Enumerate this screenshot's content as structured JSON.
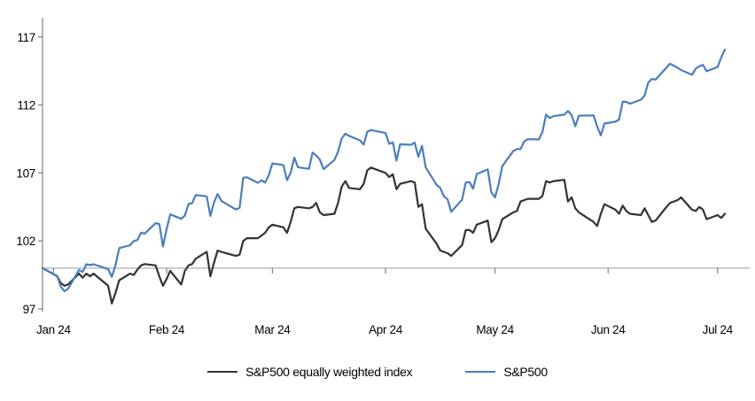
{
  "chart_data": {
    "type": "line",
    "title": "",
    "baseline_value": 100,
    "grid": "single horizontal gridline at y=100",
    "legend_position": "bottom-center",
    "colors": {
      "grid": "#a6a6a6",
      "axis": "#808080",
      "background": "#ffffff"
    },
    "y_axis": {
      "ticks": [
        97,
        102,
        107,
        112,
        117
      ],
      "range": [
        97,
        118.5
      ]
    },
    "x_axis": {
      "ticks": [
        {
          "date": "2024-01-01",
          "label": "Jan 24"
        },
        {
          "date": "2024-02-01",
          "label": "Feb 24"
        },
        {
          "date": "2024-03-01",
          "label": "Mar 24"
        },
        {
          "date": "2024-04-01",
          "label": "Apr 24"
        },
        {
          "date": "2024-05-01",
          "label": "May 24"
        },
        {
          "date": "2024-06-01",
          "label": "Jun 24"
        },
        {
          "date": "2024-07-01",
          "label": "Jul 24"
        }
      ]
    },
    "dates": [
      "2023-12-29",
      "2024-01-02",
      "2024-01-03",
      "2024-01-04",
      "2024-01-05",
      "2024-01-08",
      "2024-01-09",
      "2024-01-10",
      "2024-01-11",
      "2024-01-12",
      "2024-01-16",
      "2024-01-17",
      "2024-01-18",
      "2024-01-19",
      "2024-01-22",
      "2024-01-23",
      "2024-01-24",
      "2024-01-25",
      "2024-01-26",
      "2024-01-29",
      "2024-01-30",
      "2024-01-31",
      "2024-02-01",
      "2024-02-02",
      "2024-02-05",
      "2024-02-06",
      "2024-02-07",
      "2024-02-08",
      "2024-02-09",
      "2024-02-12",
      "2024-02-13",
      "2024-02-14",
      "2024-02-15",
      "2024-02-16",
      "2024-02-20",
      "2024-02-21",
      "2024-02-22",
      "2024-02-23",
      "2024-02-26",
      "2024-02-27",
      "2024-02-28",
      "2024-02-29",
      "2024-03-01",
      "2024-03-04",
      "2024-03-05",
      "2024-03-06",
      "2024-03-07",
      "2024-03-08",
      "2024-03-11",
      "2024-03-12",
      "2024-03-13",
      "2024-03-14",
      "2024-03-15",
      "2024-03-18",
      "2024-03-19",
      "2024-03-20",
      "2024-03-21",
      "2024-03-22",
      "2024-03-25",
      "2024-03-26",
      "2024-03-27",
      "2024-03-28",
      "2024-04-01",
      "2024-04-02",
      "2024-04-03",
      "2024-04-04",
      "2024-04-05",
      "2024-04-08",
      "2024-04-09",
      "2024-04-10",
      "2024-04-11",
      "2024-04-12",
      "2024-04-15",
      "2024-04-16",
      "2024-04-17",
      "2024-04-18",
      "2024-04-19",
      "2024-04-22",
      "2024-04-23",
      "2024-04-24",
      "2024-04-25",
      "2024-04-26",
      "2024-04-29",
      "2024-04-30",
      "2024-05-01",
      "2024-05-02",
      "2024-05-03",
      "2024-05-06",
      "2024-05-07",
      "2024-05-08",
      "2024-05-09",
      "2024-05-10",
      "2024-05-13",
      "2024-05-14",
      "2024-05-15",
      "2024-05-16",
      "2024-05-17",
      "2024-05-20",
      "2024-05-21",
      "2024-05-22",
      "2024-05-23",
      "2024-05-24",
      "2024-05-28",
      "2024-05-29",
      "2024-05-30",
      "2024-05-31",
      "2024-06-03",
      "2024-06-04",
      "2024-06-05",
      "2024-06-06",
      "2024-06-07",
      "2024-06-10",
      "2024-06-11",
      "2024-06-12",
      "2024-06-13",
      "2024-06-14",
      "2024-06-17",
      "2024-06-18",
      "2024-06-20",
      "2024-06-21",
      "2024-06-24",
      "2024-06-25",
      "2024-06-26",
      "2024-06-27",
      "2024-06-28",
      "2024-07-01",
      "2024-07-02",
      "2024-07-03"
    ],
    "series": [
      {
        "name": "S&P500 equally weighted index",
        "color": "#333333",
        "values": [
          100.0,
          99.4,
          98.9,
          98.7,
          98.8,
          99.6,
          99.3,
          99.6,
          99.4,
          99.6,
          98.7,
          97.4,
          98.2,
          99.1,
          99.6,
          99.5,
          99.9,
          100.2,
          100.3,
          100.2,
          99.4,
          98.7,
          99.2,
          99.8,
          98.8,
          99.8,
          100.2,
          100.3,
          100.7,
          101.2,
          99.4,
          100.4,
          101.3,
          101.2,
          100.9,
          101.0,
          102.0,
          102.2,
          102.2,
          102.4,
          102.6,
          103.0,
          103.2,
          103.0,
          102.6,
          103.4,
          104.4,
          104.5,
          104.4,
          104.5,
          104.8,
          104.1,
          103.9,
          104.0,
          104.8,
          106.0,
          106.4,
          105.9,
          105.8,
          106.2,
          107.2,
          107.4,
          107.0,
          106.7,
          106.9,
          105.8,
          106.2,
          106.4,
          106.3,
          104.5,
          104.7,
          102.9,
          101.8,
          101.3,
          101.2,
          101.1,
          100.9,
          101.7,
          102.8,
          102.8,
          102.6,
          103.2,
          103.5,
          101.9,
          102.2,
          102.8,
          103.6,
          104.1,
          104.2,
          104.9,
          105.0,
          105.1,
          105.1,
          105.3,
          106.4,
          106.3,
          106.4,
          106.5,
          104.9,
          105.2,
          104.4,
          104.1,
          103.4,
          103.1,
          104.0,
          104.7,
          104.3,
          104.0,
          104.6,
          104.2,
          104.0,
          103.9,
          104.4,
          103.9,
          103.4,
          103.5,
          104.5,
          104.8,
          105.0,
          105.2,
          104.3,
          104.2,
          104.5,
          104.3,
          103.6,
          103.9,
          103.7,
          104.0
        ]
      },
      {
        "name": "S&P500",
        "color": "#4a7ebd",
        "values": [
          100.0,
          99.43,
          98.64,
          98.3,
          98.48,
          99.87,
          99.72,
          100.29,
          100.22,
          100.29,
          99.92,
          99.36,
          100.23,
          101.47,
          101.69,
          101.99,
          102.07,
          102.61,
          102.54,
          103.31,
          103.25,
          101.59,
          102.86,
          103.96,
          103.63,
          103.87,
          104.72,
          104.78,
          105.38,
          105.28,
          103.84,
          104.84,
          105.45,
          104.94,
          104.31,
          104.44,
          106.65,
          106.69,
          106.28,
          106.46,
          106.29,
          106.84,
          107.7,
          107.57,
          106.47,
          107.02,
          108.13,
          107.42,
          107.3,
          108.5,
          108.29,
          107.98,
          107.28,
          107.96,
          108.57,
          109.53,
          109.89,
          109.73,
          109.4,
          109.09,
          110.03,
          110.16,
          109.94,
          109.14,
          109.26,
          107.91,
          109.11,
          109.07,
          109.23,
          108.19,
          109.0,
          107.41,
          106.12,
          105.9,
          105.29,
          105.06,
          104.14,
          105.05,
          106.3,
          106.33,
          105.84,
          106.92,
          107.26,
          105.57,
          105.21,
          106.17,
          107.5,
          108.61,
          108.76,
          108.76,
          109.31,
          109.49,
          109.47,
          110.0,
          111.29,
          111.05,
          111.18,
          111.29,
          111.56,
          111.26,
          110.44,
          111.21,
          111.24,
          110.42,
          109.76,
          110.64,
          110.77,
          110.93,
          112.25,
          112.23,
          112.1,
          112.39,
          112.69,
          113.65,
          113.92,
          113.87,
          114.75,
          115.04,
          114.74,
          114.57,
          114.22,
          114.67,
          114.85,
          114.95,
          114.48,
          114.79,
          115.5,
          116.08
        ]
      }
    ]
  }
}
